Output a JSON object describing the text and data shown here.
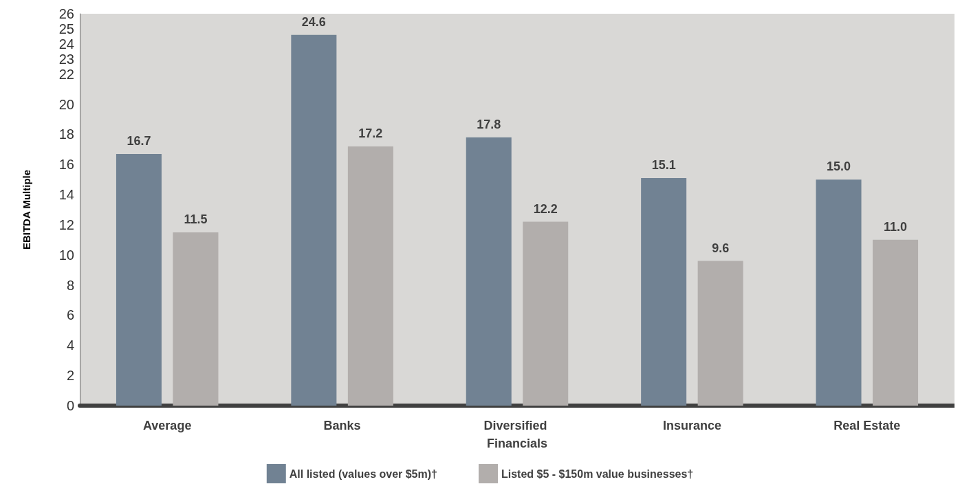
{
  "chart_data": {
    "type": "bar",
    "ylabel": "EBITDA Multiple",
    "categories": [
      "Average",
      "Banks",
      "Diversified Financials",
      "Insurance",
      "Real Estate"
    ],
    "series": [
      {
        "name": "All listed (values over $5m)†",
        "color": "#718293",
        "values": [
          16.7,
          24.6,
          17.8,
          15.1,
          15.0
        ],
        "value_labels": [
          "16.7",
          "24.6",
          "17.8",
          "15.1",
          "15.0"
        ]
      },
      {
        "name": "Listed $5 - $150m value businesses†",
        "color": "#b2aeac",
        "values": [
          11.5,
          17.2,
          12.2,
          9.6,
          11.0
        ],
        "value_labels": [
          "11.5",
          "17.2",
          "12.2",
          "9.6",
          "11.0"
        ]
      }
    ],
    "ylim": [
      0,
      26
    ],
    "yticks": [
      0,
      2,
      4,
      6,
      8,
      10,
      12,
      14,
      16,
      18,
      20,
      22,
      23,
      24,
      25,
      26
    ],
    "grid": false,
    "legend": "bottom"
  }
}
